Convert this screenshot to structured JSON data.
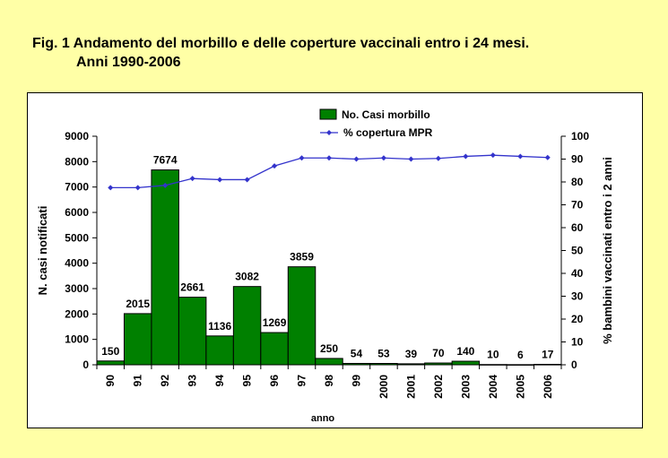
{
  "title": {
    "line1": "Fig. 1 Andamento del morbillo e delle coperture vaccinali entro i 24 mesi.",
    "line2": "Anni 1990-2006"
  },
  "chart_data": {
    "type": "bar",
    "categories": [
      "90",
      "91",
      "92",
      "93",
      "94",
      "95",
      "96",
      "97",
      "98",
      "99",
      "2000",
      "2001",
      "2002",
      "2003",
      "2004",
      "2005",
      "2006"
    ],
    "series": [
      {
        "name": "No. Casi morbillo",
        "type": "bar",
        "axis": "left",
        "values": [
          150,
          2015,
          7674,
          2661,
          1136,
          3082,
          1269,
          3859,
          250,
          54,
          53,
          39,
          70,
          140,
          10,
          6,
          17
        ],
        "data_labels": [
          "150",
          "2015",
          "7674",
          "2661",
          "1136",
          "3082",
          "1269",
          "3859",
          "250",
          "54",
          "53",
          "39",
          "70",
          "140",
          "10",
          "6",
          "17"
        ]
      },
      {
        "name": "% copertura MPR",
        "type": "line",
        "axis": "right",
        "values": [
          77.5,
          77.5,
          78.5,
          81.5,
          81,
          81,
          87,
          90.5,
          90.5,
          90,
          90.5,
          90,
          90.3,
          91.2,
          91.7,
          91.2,
          90.7
        ]
      }
    ],
    "xlabel": "anno",
    "ylabel": "N. casi notificati",
    "y2label": "% bambini vaccinati entro i 2 anni",
    "ylim": [
      0,
      9000
    ],
    "y2lim": [
      0,
      100
    ],
    "yticks": [
      "0",
      "1000",
      "2000",
      "3000",
      "4000",
      "5000",
      "6000",
      "7000",
      "8000",
      "9000"
    ],
    "y2ticks": [
      "0",
      "10",
      "20",
      "30",
      "40",
      "50",
      "60",
      "70",
      "80",
      "90",
      "100"
    ],
    "legend_position": "top-center",
    "grid": false,
    "colors": {
      "bar": "#008000",
      "bar_edge": "#000000",
      "line": "#3333CC",
      "background": "#FFFFA6"
    }
  }
}
